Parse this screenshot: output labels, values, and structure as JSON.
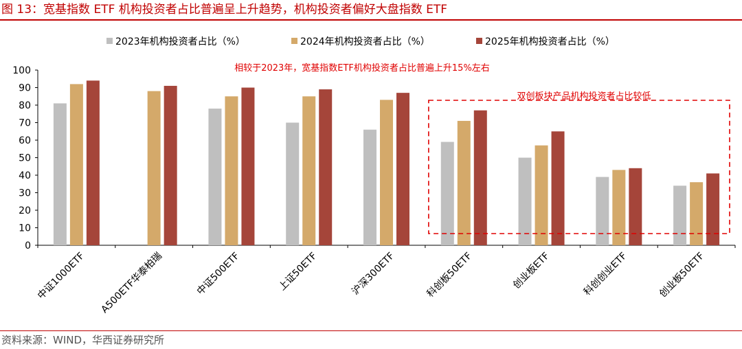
{
  "header": {
    "title": "图 13：宽基指数 ETF 机构投资者占比普遍呈上升趋势，机构投资者偏好大盘指数 ETF"
  },
  "footer": {
    "source": "资料来源：WIND，华西证券研究所"
  },
  "colors": {
    "accent": "#c00000",
    "series_2023": "#bfbfbf",
    "series_2024": "#d4a96a",
    "series_2025": "#a5453a",
    "annotation": "#e00000"
  },
  "chart_data": {
    "type": "bar",
    "categories": [
      "中证1000ETF",
      "A500ETF华泰柏瑞",
      "中证500ETF",
      "上证50ETF",
      "沪深300ETF",
      "科创板50ETF",
      "创业板ETF",
      "科创创业ETF",
      "创业板50ETF"
    ],
    "series": [
      {
        "name": "2023年机构投资者占比（%）",
        "values": [
          81,
          null,
          78,
          70,
          66,
          59,
          50,
          39,
          34
        ]
      },
      {
        "name": "2024年机构投资者占比（%）",
        "values": [
          92,
          88,
          85,
          85,
          83,
          71,
          57,
          43,
          36
        ]
      },
      {
        "name": "2025年机构投资者占比（%）",
        "values": [
          94,
          91,
          90,
          89,
          87,
          77,
          65,
          44,
          41
        ]
      }
    ],
    "ylim": [
      0,
      100
    ],
    "yticks": [
      0,
      10,
      20,
      30,
      40,
      50,
      60,
      70,
      80,
      90,
      100
    ],
    "legend_position": "top",
    "grid": false,
    "annotations": [
      "相较于2023年，宽基指数ETF机构投资者占比普遍上升15%左右",
      "双创板块产品机构投资者占比较低"
    ]
  }
}
